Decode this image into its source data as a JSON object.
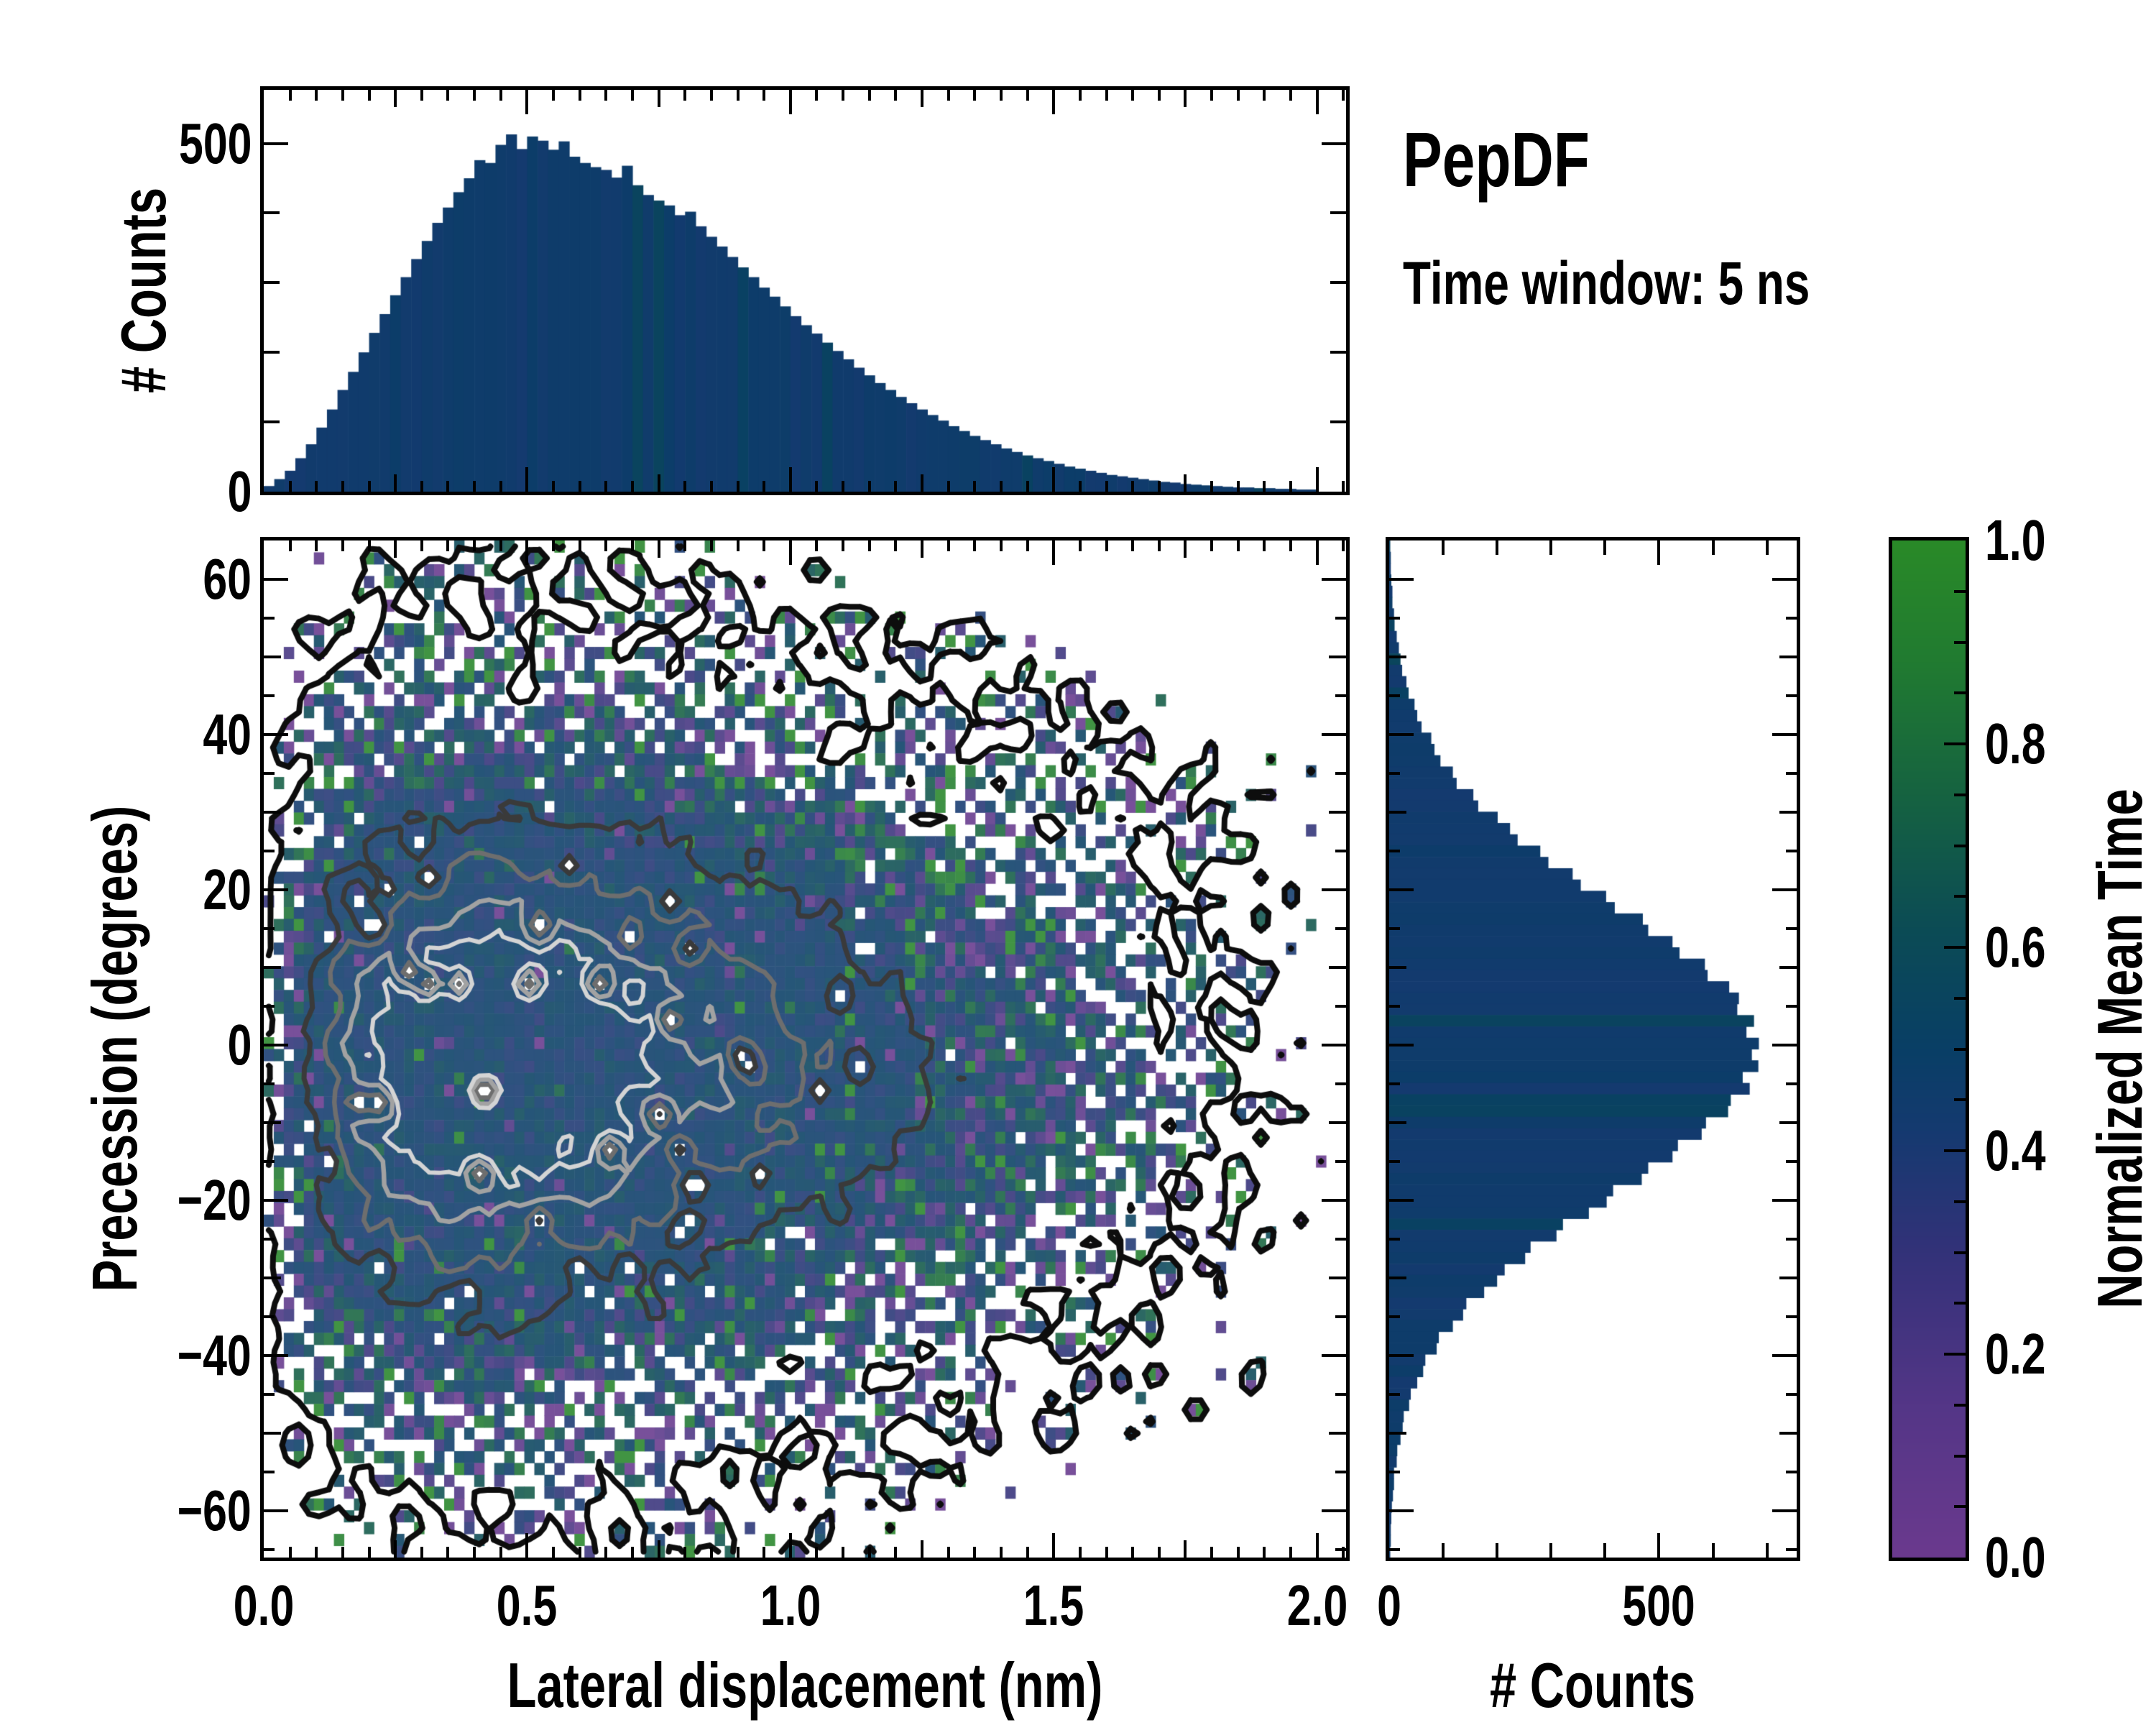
{
  "title": {
    "heading": "PepDF",
    "subheading": "Time window: 5 ns"
  },
  "colors": {
    "background": "#ffffff",
    "spine": "#000000",
    "text": "#000000",
    "histogram_bar_base": "#07406f"
  },
  "chart_data": [
    {
      "id": "top_histogram",
      "type": "bar",
      "orientation": "vertical",
      "ylabel": "# Counts",
      "xlim": [
        0,
        2.055
      ],
      "ylim": [
        0,
        577
      ],
      "ytick_major_values": [
        0,
        500
      ],
      "ytick_major_labels": [
        "0",
        "500"
      ],
      "ytick_minor_step": 100,
      "bin_start": 0,
      "bin_width": 0.02,
      "bar_value_mean": 0.45,
      "values": [
        8,
        18,
        30,
        48,
        68,
        92,
        118,
        146,
        172,
        200,
        228,
        255,
        282,
        308,
        334,
        360,
        386,
        408,
        430,
        450,
        476,
        472,
        498,
        513,
        492,
        510,
        504,
        491,
        503,
        481,
        472,
        466,
        462,
        451,
        468,
        440,
        426,
        418,
        411,
        397,
        402,
        381,
        366,
        352,
        337,
        322,
        308,
        293,
        280,
        266,
        252,
        239,
        227,
        214,
        202,
        190,
        178,
        167,
        156,
        146,
        136,
        127,
        118,
        110,
        102,
        94,
        87,
        80,
        74,
        68,
        62,
        57,
        52,
        48,
        44,
        40,
        36,
        33,
        30,
        27,
        24,
        22,
        20,
        18,
        16,
        14,
        13,
        11,
        10,
        9,
        8,
        7,
        6,
        6,
        5,
        5,
        4,
        4,
        3,
        3
      ]
    },
    {
      "id": "joint_heatmap",
      "type": "heatmap",
      "xlabel": "Lateral displacement (nm)",
      "ylabel": "Precession (degrees)",
      "value_label": "Normalized Mean Time",
      "xlim": [
        0,
        2.055
      ],
      "ylim": [
        -66,
        65
      ],
      "xtick_major_values": [
        0,
        0.5,
        1.0,
        1.5,
        2.0
      ],
      "xtick_major_labels": [
        "0.0",
        "0.5",
        "1.0",
        "1.5",
        "2.0"
      ],
      "xtick_medium_step": 0.25,
      "xtick_minor_step": 0.05,
      "ytick_major_values": [
        -60,
        -40,
        -20,
        0,
        20,
        40,
        60
      ],
      "ytick_major_labels": [
        "−60",
        "−40",
        "−20",
        "0",
        "20",
        "40",
        "60"
      ],
      "ytick_medium_step": 10,
      "ytick_minor_step": 5,
      "grid": false,
      "generator": {
        "comment": "stochastic recreation of 2D histogram colored by normalized mean time",
        "seed": 1337,
        "cells_x": 108,
        "cells_y": 86,
        "x_gamma_mode": 0.42,
        "x_gamma_theta": 0.21,
        "y_center": -2,
        "y_sigma_core": 16.5,
        "y_sigma_tail": 25,
        "y_tail_weight": 0.12,
        "mean_value": 0.47,
        "value_sigma_core": 0.05,
        "value_sigma_edge": 0.3,
        "white_blend": 0.12,
        "edge_fade_start": 1.6
      },
      "contour_levels": [
        {
          "level": 0.09,
          "color": "#0d0d0d",
          "width": 8
        },
        {
          "level": 0.62,
          "color": "#3a3a3a",
          "width": 7
        },
        {
          "level": 0.73,
          "color": "#6e6e6e",
          "width": 6.5
        },
        {
          "level": 0.82,
          "color": "#a2a2a2",
          "width": 6.5
        },
        {
          "level": 0.885,
          "color": "#d4d4d4",
          "width": 6
        }
      ]
    },
    {
      "id": "right_histogram",
      "type": "bar",
      "orientation": "horizontal",
      "xlabel": "# Counts",
      "xlim": [
        0,
        755
      ],
      "ylim": [
        -66,
        65
      ],
      "xtick_major_values": [
        0,
        500
      ],
      "xtick_major_labels": [
        "0",
        "500"
      ],
      "xtick_minor_step": 100,
      "bin_start": 65,
      "bin_width": -1.4556,
      "bar_value_mean": 0.45,
      "values": [
        2,
        3,
        3,
        4,
        6,
        6,
        9,
        10,
        14,
        18,
        21,
        24,
        32,
        36,
        47,
        52,
        60,
        78,
        84,
        95,
        118,
        125,
        156,
        165,
        201,
        224,
        238,
        280,
        295,
        340,
        355,
        402,
        418,
        470,
        480,
        525,
        538,
        585,
        590,
        630,
        648,
        645,
        676,
        662,
        685,
        672,
        684,
        655,
        668,
        633,
        628,
        587,
        579,
        535,
        525,
        480,
        468,
        415,
        403,
        370,
        322,
        310,
        262,
        252,
        214,
        200,
        176,
        143,
        137,
        118,
        92,
        88,
        67,
        63,
        52,
        40,
        37,
        27,
        25,
        21,
        15,
        14,
        9,
        9,
        7,
        5,
        4,
        3,
        3,
        2
      ]
    },
    {
      "id": "colorbar",
      "type": "colorbar",
      "label": "Normalized Mean Time",
      "lim": [
        0,
        1
      ],
      "tick_values": [
        0,
        0.2,
        0.4,
        0.6,
        0.8,
        1.0
      ],
      "tick_labels": [
        "0.0",
        "0.2",
        "0.4",
        "0.6",
        "0.8",
        "1.0"
      ],
      "minor_step": 0.05,
      "stops": [
        [
          0.0,
          "#6b3a8e"
        ],
        [
          0.15,
          "#543687"
        ],
        [
          0.3,
          "#333279"
        ],
        [
          0.42,
          "#153a70"
        ],
        [
          0.5,
          "#093f66"
        ],
        [
          0.62,
          "#0c4c55"
        ],
        [
          0.75,
          "#166341"
        ],
        [
          0.88,
          "#217b31"
        ],
        [
          1.0,
          "#2a8a28"
        ]
      ]
    }
  ]
}
